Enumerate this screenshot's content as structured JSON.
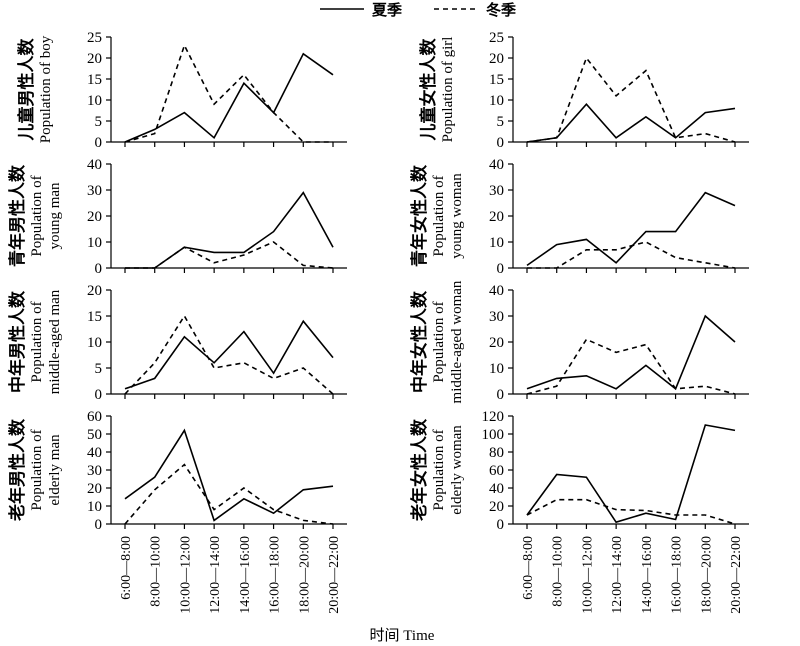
{
  "legend": {
    "summer": "夏季",
    "winter": "冬季"
  },
  "x_title": "时间 Time",
  "chart_data": [
    {
      "type": "line",
      "ylabel_cn": "儿童男性人数",
      "ylabel_en": [
        "Population of boy"
      ],
      "categories": [
        "6:00—8:00",
        "8:00—10:00",
        "10:00—12:00",
        "12:00—14:00",
        "14:00—16:00",
        "16:00—18:00",
        "18:00—20:00",
        "20:00—22:00"
      ],
      "ylim": [
        0,
        25
      ],
      "yticks": [
        0,
        5,
        10,
        15,
        20,
        25
      ],
      "series": [
        {
          "name": "夏季",
          "values": [
            0,
            3,
            7,
            1,
            14,
            7,
            21,
            16
          ]
        },
        {
          "name": "冬季",
          "values": [
            0,
            2,
            23,
            9,
            16,
            7,
            0,
            0
          ]
        }
      ]
    },
    {
      "type": "line",
      "ylabel_cn": "儿童女性人数",
      "ylabel_en": [
        "Population of girl"
      ],
      "categories": [
        "6:00—8:00",
        "8:00—10:00",
        "10:00—12:00",
        "12:00—14:00",
        "14:00—16:00",
        "16:00—18:00",
        "18:00—20:00",
        "20:00—22:00"
      ],
      "ylim": [
        0,
        25
      ],
      "yticks": [
        0,
        5,
        10,
        15,
        20,
        25
      ],
      "series": [
        {
          "name": "夏季",
          "values": [
            0,
            1,
            9,
            1,
            6,
            1,
            7,
            8
          ]
        },
        {
          "name": "冬季",
          "values": [
            0,
            1,
            20,
            11,
            17,
            1,
            2,
            0
          ]
        }
      ]
    },
    {
      "type": "line",
      "ylabel_cn": "青年男性人数",
      "ylabel_en": [
        "Population of",
        "young man"
      ],
      "categories": [
        "6:00—8:00",
        "8:00—10:00",
        "10:00—12:00",
        "12:00—14:00",
        "14:00—16:00",
        "16:00—18:00",
        "18:00—20:00",
        "20:00—22:00"
      ],
      "ylim": [
        0,
        40
      ],
      "yticks": [
        0,
        10,
        20,
        30,
        40
      ],
      "series": [
        {
          "name": "夏季",
          "values": [
            0,
            0,
            8,
            6,
            6,
            14,
            29,
            8
          ]
        },
        {
          "name": "冬季",
          "values": [
            0,
            0,
            8,
            2,
            5,
            10,
            1,
            0
          ]
        }
      ]
    },
    {
      "type": "line",
      "ylabel_cn": "青年女性人数",
      "ylabel_en": [
        "Population of",
        "young woman"
      ],
      "categories": [
        "6:00—8:00",
        "8:00—10:00",
        "10:00—12:00",
        "12:00—14:00",
        "14:00—16:00",
        "16:00—18:00",
        "18:00—20:00",
        "20:00—22:00"
      ],
      "ylim": [
        0,
        40
      ],
      "yticks": [
        0,
        10,
        20,
        30,
        40
      ],
      "series": [
        {
          "name": "夏季",
          "values": [
            1,
            9,
            11,
            2,
            14,
            14,
            29,
            24
          ]
        },
        {
          "name": "冬季",
          "values": [
            0,
            0,
            7,
            7,
            10,
            4,
            2,
            0
          ]
        }
      ]
    },
    {
      "type": "line",
      "ylabel_cn": "中年男性人数",
      "ylabel_en": [
        "Population of",
        "middle-aged man"
      ],
      "categories": [
        "6:00—8:00",
        "8:00—10:00",
        "10:00—12:00",
        "12:00—14:00",
        "14:00—16:00",
        "16:00—18:00",
        "18:00—20:00",
        "20:00—22:00"
      ],
      "ylim": [
        0,
        20
      ],
      "yticks": [
        0,
        5,
        10,
        15,
        20
      ],
      "series": [
        {
          "name": "夏季",
          "values": [
            1,
            3,
            11,
            6,
            12,
            4,
            14,
            7
          ]
        },
        {
          "name": "冬季",
          "values": [
            0,
            6,
            15,
            5,
            6,
            3,
            5,
            0
          ]
        }
      ]
    },
    {
      "type": "line",
      "ylabel_cn": "中年女性人数",
      "ylabel_en": [
        "Population of",
        "middle-aged woman"
      ],
      "categories": [
        "6:00—8:00",
        "8:00—10:00",
        "10:00—12:00",
        "12:00—14:00",
        "14:00—16:00",
        "16:00—18:00",
        "18:00—20:00",
        "20:00—22:00"
      ],
      "ylim": [
        0,
        40
      ],
      "yticks": [
        0,
        10,
        20,
        30,
        40
      ],
      "series": [
        {
          "name": "夏季",
          "values": [
            2,
            6,
            7,
            2,
            11,
            2,
            30,
            20
          ]
        },
        {
          "name": "冬季",
          "values": [
            0,
            3,
            21,
            16,
            19,
            2,
            3,
            0
          ]
        }
      ]
    },
    {
      "type": "line",
      "ylabel_cn": "老年男性人数",
      "ylabel_en": [
        "Population of",
        "elderly man"
      ],
      "categories": [
        "6:00—8:00",
        "8:00—10:00",
        "10:00—12:00",
        "12:00—14:00",
        "14:00—16:00",
        "16:00—18:00",
        "18:00—20:00",
        "20:00—22:00"
      ],
      "ylim": [
        0,
        60
      ],
      "yticks": [
        0,
        10,
        20,
        30,
        40,
        50,
        60
      ],
      "series": [
        {
          "name": "夏季",
          "values": [
            14,
            26,
            52,
            2,
            14,
            6,
            19,
            21
          ]
        },
        {
          "name": "冬季",
          "values": [
            0,
            19,
            33,
            8,
            20,
            8,
            2,
            0
          ]
        }
      ]
    },
    {
      "type": "line",
      "ylabel_cn": "老年女性人数",
      "ylabel_en": [
        "Population of",
        "elderly woman"
      ],
      "categories": [
        "6:00—8:00",
        "8:00—10:00",
        "10:00—12:00",
        "12:00—14:00",
        "14:00—16:00",
        "16:00—18:00",
        "18:00—20:00",
        "20:00—22:00"
      ],
      "ylim": [
        0,
        120
      ],
      "yticks": [
        0,
        20,
        40,
        60,
        80,
        100,
        120
      ],
      "series": [
        {
          "name": "夏季",
          "values": [
            10,
            55,
            52,
            2,
            12,
            5,
            110,
            104
          ]
        },
        {
          "name": "冬季",
          "values": [
            10,
            27,
            27,
            16,
            15,
            10,
            10,
            0
          ]
        }
      ]
    }
  ]
}
